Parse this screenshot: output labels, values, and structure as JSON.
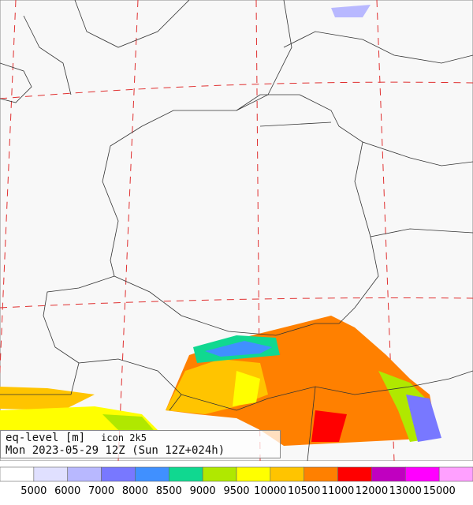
{
  "title": {
    "variable": "eq-level [m]",
    "model": "icon 2k5",
    "time": "Mon 2023-05-29 12Z (Sun 12Z+024h)"
  },
  "legend": {
    "colors": [
      "#ffffff",
      "#e0e0ff",
      "#b8b8ff",
      "#7878ff",
      "#4090ff",
      "#10d890",
      "#b0e800",
      "#ffff00",
      "#ffc400",
      "#ff8000",
      "#ff0000",
      "#c000c0",
      "#ff00ff",
      "#ffa0ff"
    ],
    "boundaries": [
      5000,
      6000,
      7000,
      8000,
      8500,
      9000,
      9500,
      10000,
      10500,
      11000,
      12000,
      13000,
      15000
    ]
  }
}
